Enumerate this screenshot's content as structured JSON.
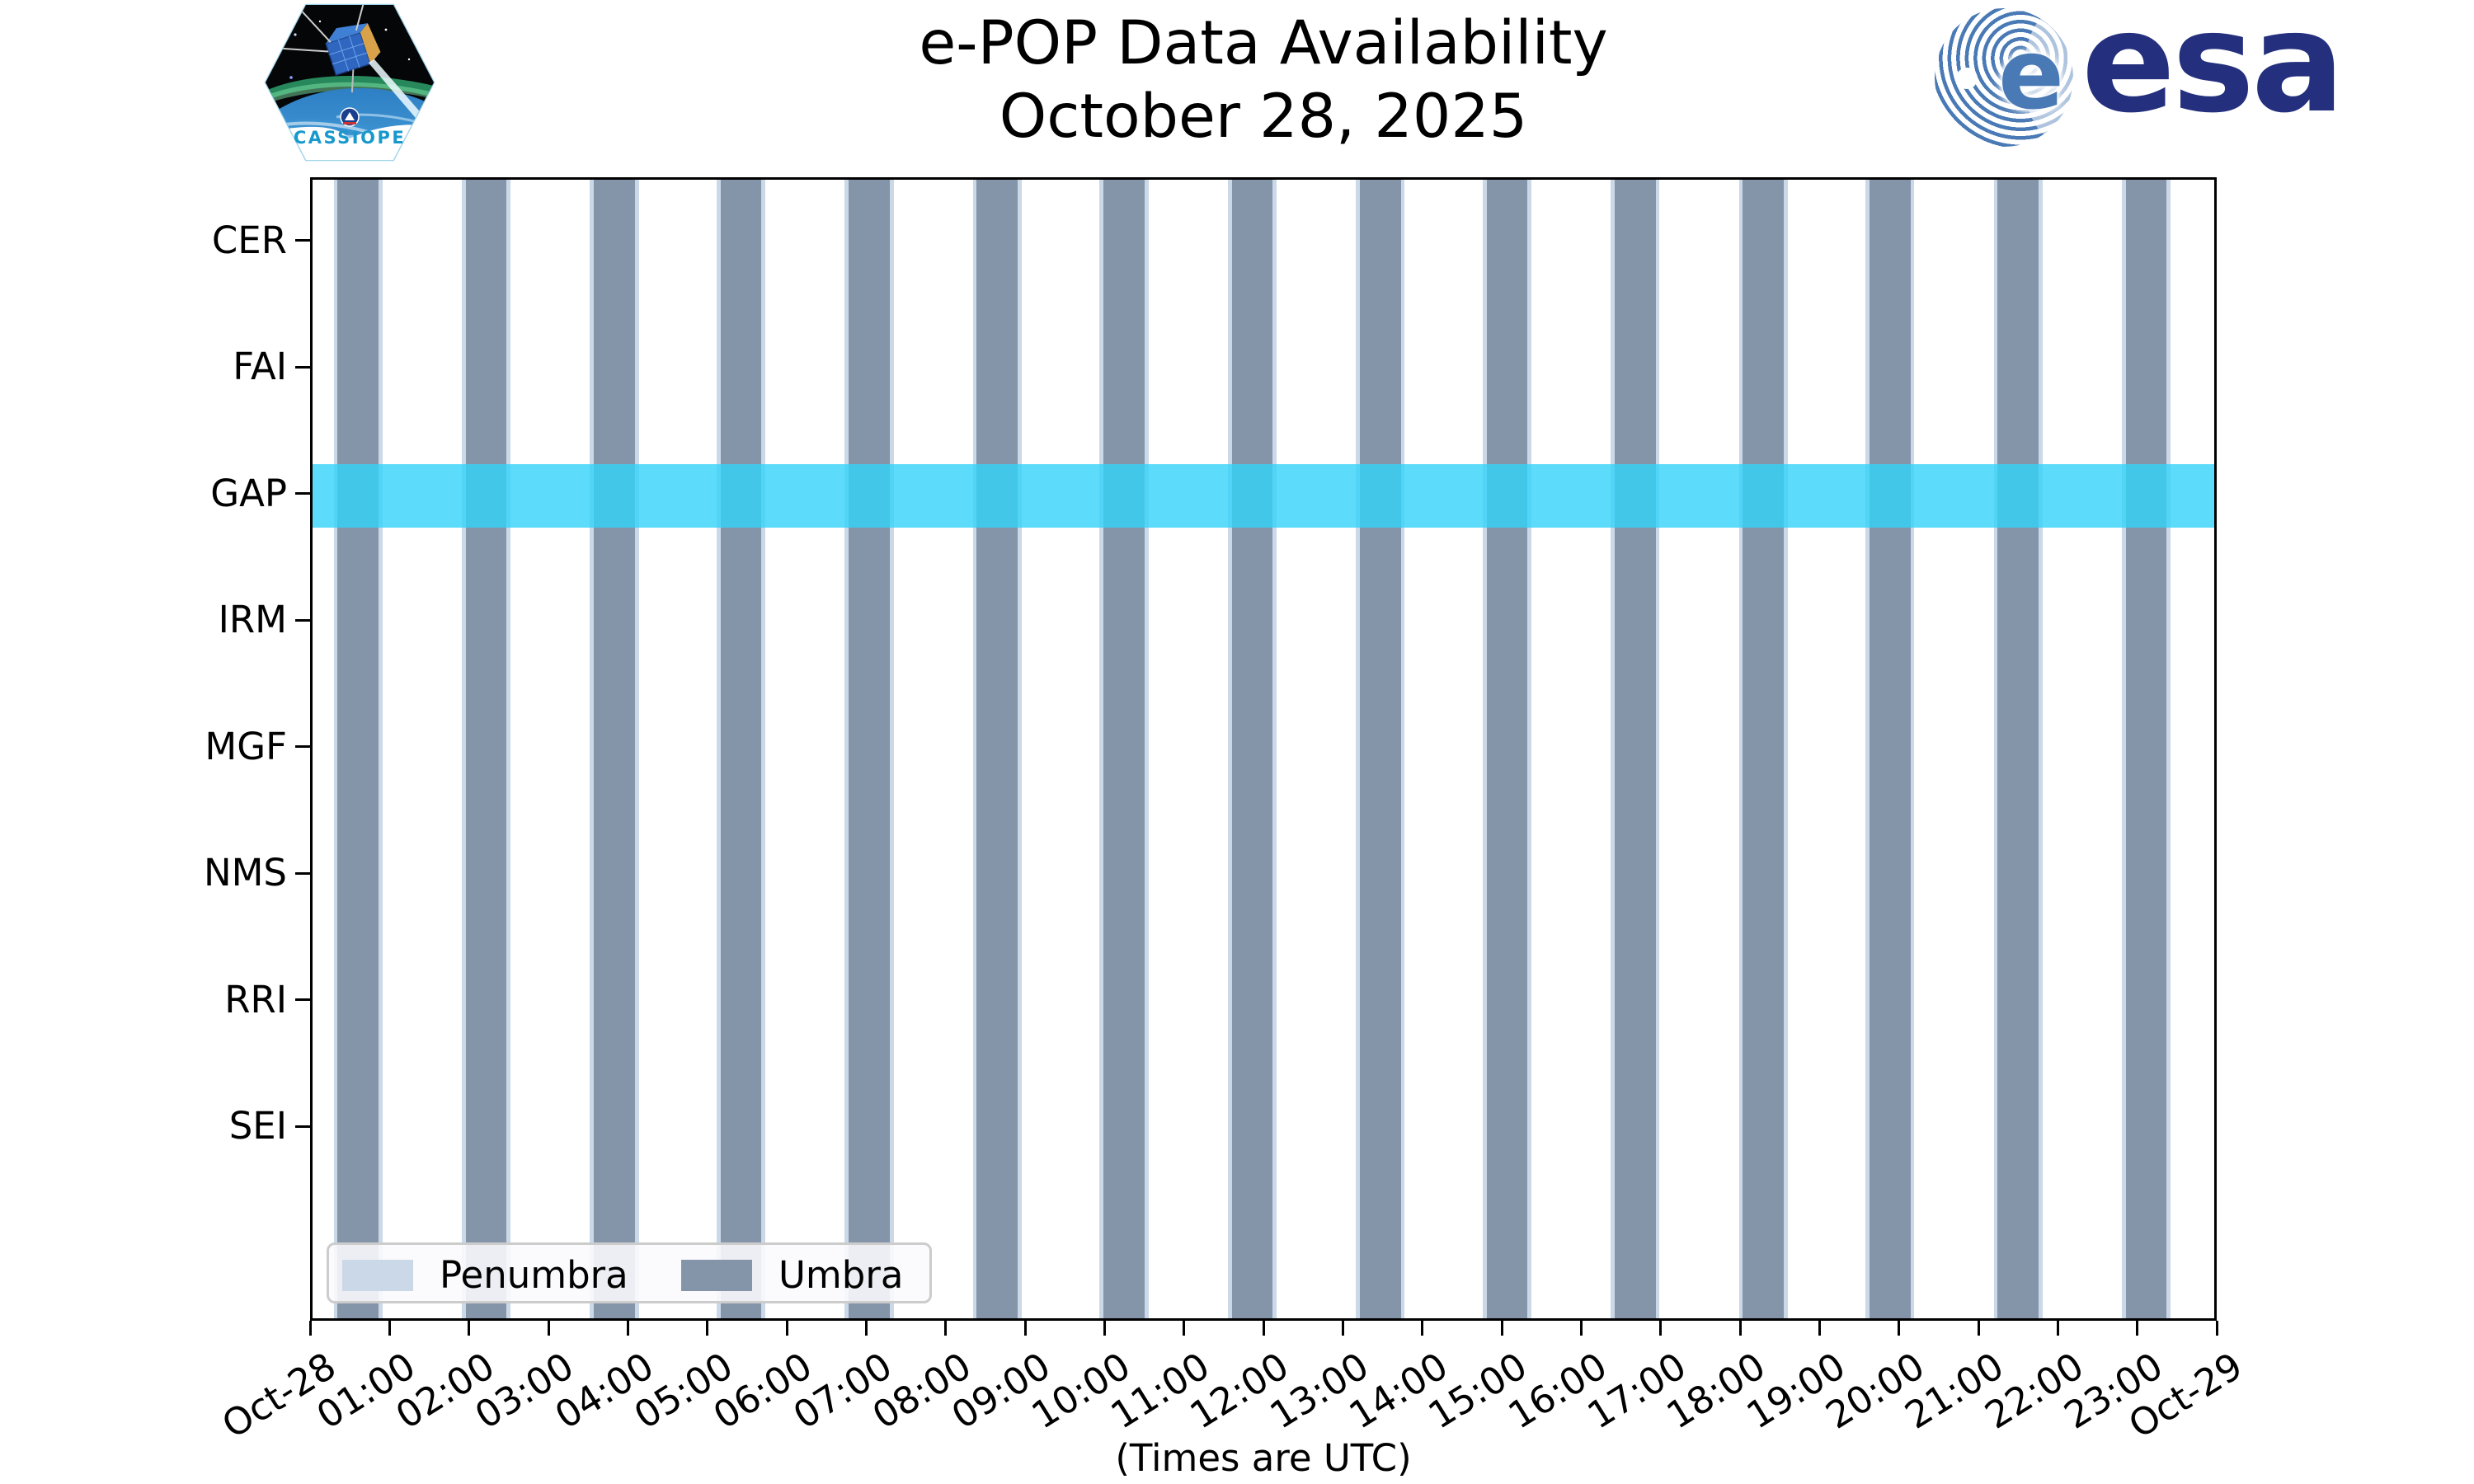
{
  "header": {
    "title_line1": "e-POP Data Availability",
    "title_line2": "October 28, 2025",
    "cassiope_patch_label": "CASSIOPE",
    "esa_logo_text": "esa",
    "esa_e_glyph": "e"
  },
  "footer": {
    "caption": "(Times are UTC)"
  },
  "chart_data": {
    "type": "timeline",
    "title": "e-POP Data Availability",
    "subtitle": "October 28, 2025",
    "xlabel": "(Times are UTC)",
    "x_axis": {
      "start": "Oct-28 00:00",
      "end": "Oct-29 00:00",
      "hours_total": 24,
      "tick_labels": [
        "Oct-28",
        "01:00",
        "02:00",
        "03:00",
        "04:00",
        "05:00",
        "06:00",
        "07:00",
        "08:00",
        "09:00",
        "10:00",
        "11:00",
        "12:00",
        "13:00",
        "14:00",
        "15:00",
        "16:00",
        "17:00",
        "18:00",
        "19:00",
        "20:00",
        "21:00",
        "22:00",
        "23:00",
        "Oct-29"
      ]
    },
    "instruments": [
      "CER",
      "FAI",
      "GAP",
      "IRM",
      "MGF",
      "NMS",
      "RRI",
      "SEI"
    ],
    "availability": [
      {
        "instrument": "GAP",
        "start": "00:00",
        "end": "24:00",
        "start_min": 0,
        "end_min": 1440
      }
    ],
    "umbra_intervals": [
      {
        "start": "00:19",
        "end": "00:50",
        "start_min": 19,
        "end_min": 50
      },
      {
        "start": "01:56",
        "end": "02:27",
        "start_min": 116,
        "end_min": 147
      },
      {
        "start": "03:33",
        "end": "04:04",
        "start_min": 213,
        "end_min": 244
      },
      {
        "start": "05:09",
        "end": "05:40",
        "start_min": 309,
        "end_min": 340
      },
      {
        "start": "06:46",
        "end": "07:17",
        "start_min": 406,
        "end_min": 437
      },
      {
        "start": "08:23",
        "end": "08:54",
        "start_min": 503,
        "end_min": 534
      },
      {
        "start": "09:59",
        "end": "10:30",
        "start_min": 599,
        "end_min": 630
      },
      {
        "start": "11:36",
        "end": "12:07",
        "start_min": 696,
        "end_min": 727
      },
      {
        "start": "13:13",
        "end": "13:44",
        "start_min": 793,
        "end_min": 824
      },
      {
        "start": "14:49",
        "end": "15:20",
        "start_min": 889,
        "end_min": 920
      },
      {
        "start": "16:26",
        "end": "16:57",
        "start_min": 986,
        "end_min": 1017
      },
      {
        "start": "18:03",
        "end": "18:34",
        "start_min": 1083,
        "end_min": 1114
      },
      {
        "start": "19:39",
        "end": "20:10",
        "start_min": 1179,
        "end_min": 1210
      },
      {
        "start": "21:16",
        "end": "21:47",
        "start_min": 1276,
        "end_min": 1307
      },
      {
        "start": "22:53",
        "end": "23:24",
        "start_min": 1373,
        "end_min": 1404
      }
    ],
    "penumbra_margin_min": 3,
    "legend": [
      {
        "label": "Penumbra",
        "color": "#CBD8E8"
      },
      {
        "label": "Umbra",
        "color": "#8494A9"
      }
    ],
    "legend_position": "lower left",
    "grid": false,
    "colors": {
      "umbra": "#8494A9",
      "penumbra": "#CBD8E8",
      "gap_band": "#33D3F9",
      "gap_band_rgba": "rgba(51,211,249,0.8)",
      "axis": "#000000",
      "esa_navy": "#242F7D",
      "esa_swirl_blue": "#4A7AB5",
      "cassiope_text_blue": "#1899CC"
    }
  }
}
